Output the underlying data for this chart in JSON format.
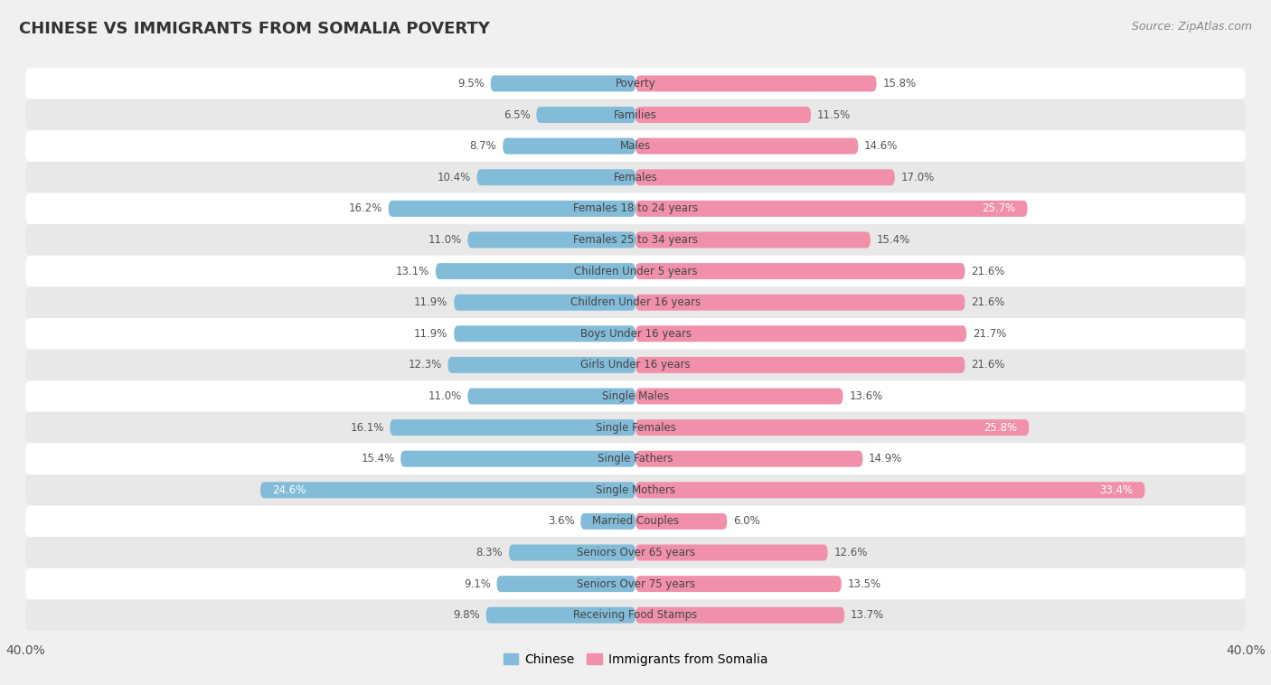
{
  "title": "CHINESE VS IMMIGRANTS FROM SOMALIA POVERTY",
  "source": "Source: ZipAtlas.com",
  "categories": [
    "Poverty",
    "Families",
    "Males",
    "Females",
    "Females 18 to 24 years",
    "Females 25 to 34 years",
    "Children Under 5 years",
    "Children Under 16 years",
    "Boys Under 16 years",
    "Girls Under 16 years",
    "Single Males",
    "Single Females",
    "Single Fathers",
    "Single Mothers",
    "Married Couples",
    "Seniors Over 65 years",
    "Seniors Over 75 years",
    "Receiving Food Stamps"
  ],
  "chinese": [
    9.5,
    6.5,
    8.7,
    10.4,
    16.2,
    11.0,
    13.1,
    11.9,
    11.9,
    12.3,
    11.0,
    16.1,
    15.4,
    24.6,
    3.6,
    8.3,
    9.1,
    9.8
  ],
  "somalia": [
    15.8,
    11.5,
    14.6,
    17.0,
    25.7,
    15.4,
    21.6,
    21.6,
    21.7,
    21.6,
    13.6,
    25.8,
    14.9,
    33.4,
    6.0,
    12.6,
    13.5,
    13.7
  ],
  "chinese_color": "#82bcd8",
  "somalia_color": "#f090aa",
  "chinese_label_color_highlight": "#ffffff",
  "somalia_label_color_highlight": "#ffffff",
  "highlight_chinese": [
    13
  ],
  "highlight_somalia": [
    4,
    11,
    13
  ],
  "bg_color": "#f0f0f0",
  "row_color_odd": "#f8f8f8",
  "row_color_even": "#e8e8e8",
  "xlim": 40.0,
  "bar_height": 0.52,
  "title_fontsize": 13,
  "label_fontsize": 8.5,
  "axis_fontsize": 10,
  "legend_fontsize": 10,
  "source_fontsize": 9
}
